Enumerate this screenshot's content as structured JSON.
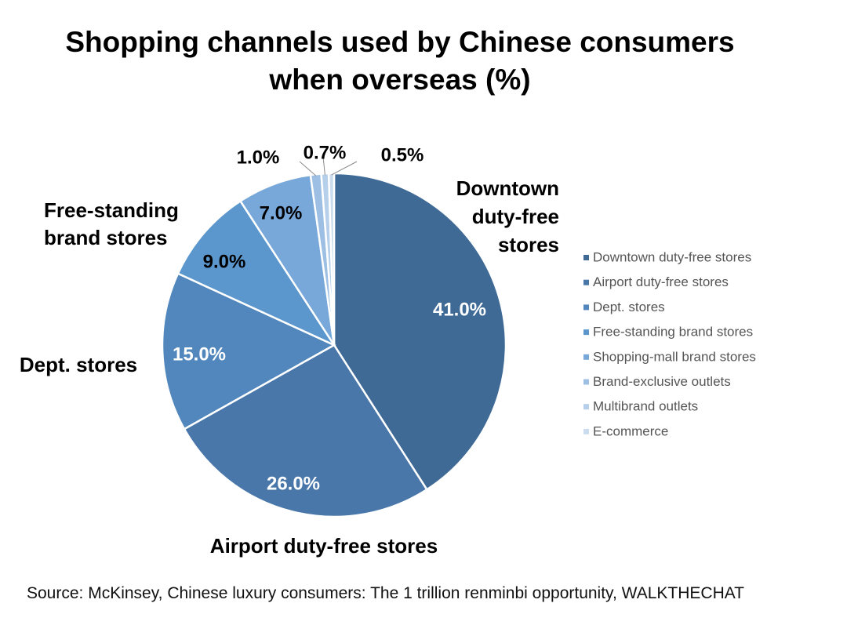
{
  "title_lines": [
    "Shopping channels used by Chinese consumers",
    "when overseas (%)"
  ],
  "source": "Source: McKinsey, Chinese luxury consumers: The 1 trillion renminbi opportunity, WALKTHECHAT",
  "chart_data": {
    "type": "pie",
    "title": "Shopping channels used by Chinese consumers when overseas (%)",
    "unit": "%",
    "slices": [
      {
        "name": "Downtown duty-free stores",
        "value": 41.0,
        "label": "41.0%",
        "color": "#3f6a96",
        "callout": [
          "Downtown",
          "duty-free",
          "stores"
        ]
      },
      {
        "name": "Airport duty-free stores",
        "value": 26.0,
        "label": "26.0%",
        "color": "#4977aa",
        "callout": [
          "Airport duty-free stores"
        ]
      },
      {
        "name": "Dept. stores",
        "value": 15.0,
        "label": "15.0%",
        "color": "#5187bd",
        "callout": [
          "Dept. stores"
        ]
      },
      {
        "name": "Free-standing brand stores",
        "value": 9.0,
        "label": "9.0%",
        "color": "#5b97cc",
        "callout": [
          "Free-standing",
          "brand stores"
        ]
      },
      {
        "name": "Shopping-mall brand stores",
        "value": 7.0,
        "label": "7.0%",
        "color": "#78a8d9",
        "callout": []
      },
      {
        "name": "Brand-exclusive outlets",
        "value": 1.0,
        "label": "1.0%",
        "color": "#9cbfe3",
        "callout": []
      },
      {
        "name": "Multibrand outlets",
        "value": 0.7,
        "label": "0.7%",
        "color": "#b6cfea",
        "callout": []
      },
      {
        "name": "E-commerce",
        "value": 0.5,
        "label": "0.5%",
        "color": "#ccdcef",
        "callout": []
      }
    ],
    "legend_position": "right"
  }
}
